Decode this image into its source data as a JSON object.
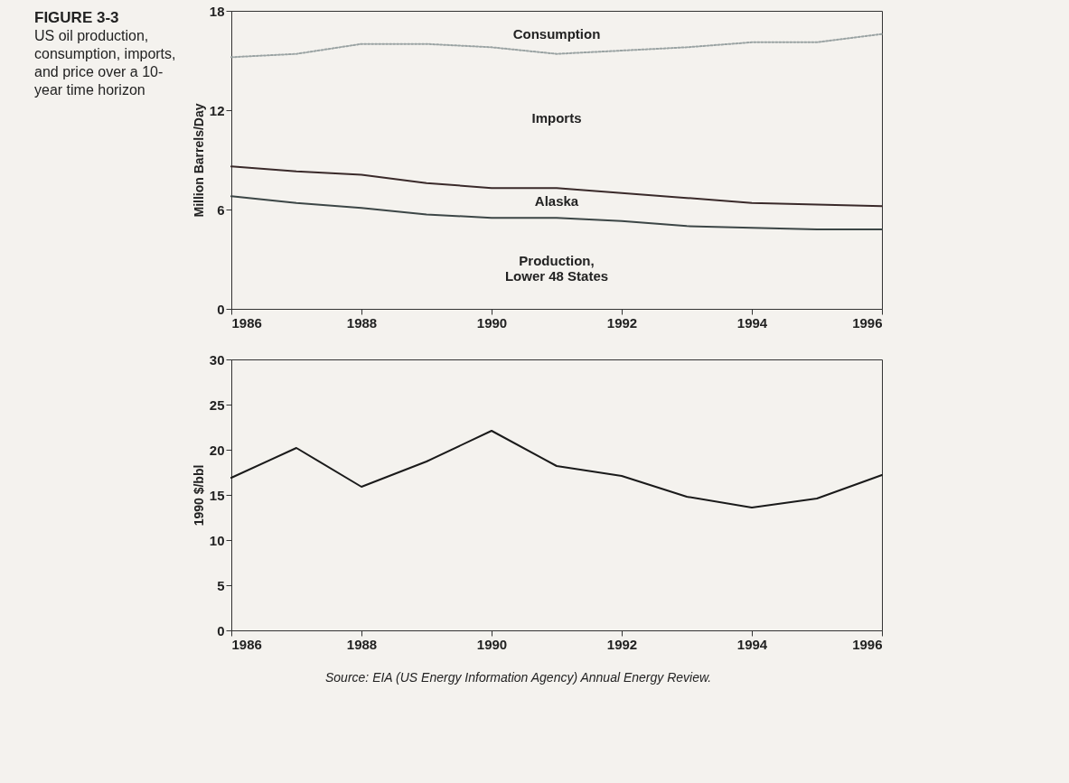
{
  "chart_data": [
    {
      "type": "line",
      "title": "FIGURE 3-3",
      "subtitle": "US oil production, consumption, imports, and price over a 10-year time horizon",
      "ylabel": "Million Barrels/Day",
      "x": [
        1986,
        1987,
        1988,
        1989,
        1990,
        1991,
        1992,
        1993,
        1994,
        1995,
        1996
      ],
      "series": [
        {
          "color": "#9aa3a3",
          "line_style": "dotted",
          "values": [
            15.2,
            15.4,
            16.0,
            16.0,
            15.8,
            15.4,
            15.6,
            15.8,
            16.1,
            16.1,
            16.6
          ]
        },
        {
          "color": "#3a2a2a",
          "values": [
            8.6,
            8.3,
            8.1,
            7.6,
            7.3,
            7.3,
            7.0,
            6.7,
            6.4,
            6.3,
            6.2
          ]
        },
        {
          "color": "#3c4646",
          "values": [
            6.8,
            6.4,
            6.1,
            5.7,
            5.5,
            5.5,
            5.3,
            5.0,
            4.9,
            4.8,
            4.8
          ]
        }
      ],
      "annotations": [
        "Consumption",
        "Imports",
        "Alaska",
        "Production,\nLower 48 States"
      ],
      "xlim": [
        1986,
        1996
      ],
      "xticks": [
        1986,
        1988,
        1990,
        1992,
        1994,
        1996
      ],
      "ylim": [
        0,
        18
      ],
      "yticks": [
        0,
        6,
        12,
        18
      ],
      "grid": false
    },
    {
      "type": "line",
      "ylabel": "1990 $/bbl",
      "x": [
        1986,
        1987,
        1988,
        1989,
        1990,
        1991,
        1992,
        1993,
        1994,
        1995,
        1996
      ],
      "series": [
        {
          "color": "#1a1a1a",
          "values": [
            16.9,
            20.2,
            15.9,
            18.7,
            22.1,
            18.2,
            17.1,
            14.8,
            13.6,
            14.6,
            17.2
          ]
        }
      ],
      "annotations": [
        "Source: EIA (US Energy Information Agency) Annual Energy Review."
      ],
      "xlim": [
        1986,
        1996
      ],
      "xticks": [
        1986,
        1988,
        1990,
        1992,
        1994,
        1996
      ],
      "ylim": [
        0,
        30
      ],
      "yticks": [
        0,
        5,
        10,
        15,
        20,
        25,
        30
      ],
      "grid": false
    }
  ]
}
